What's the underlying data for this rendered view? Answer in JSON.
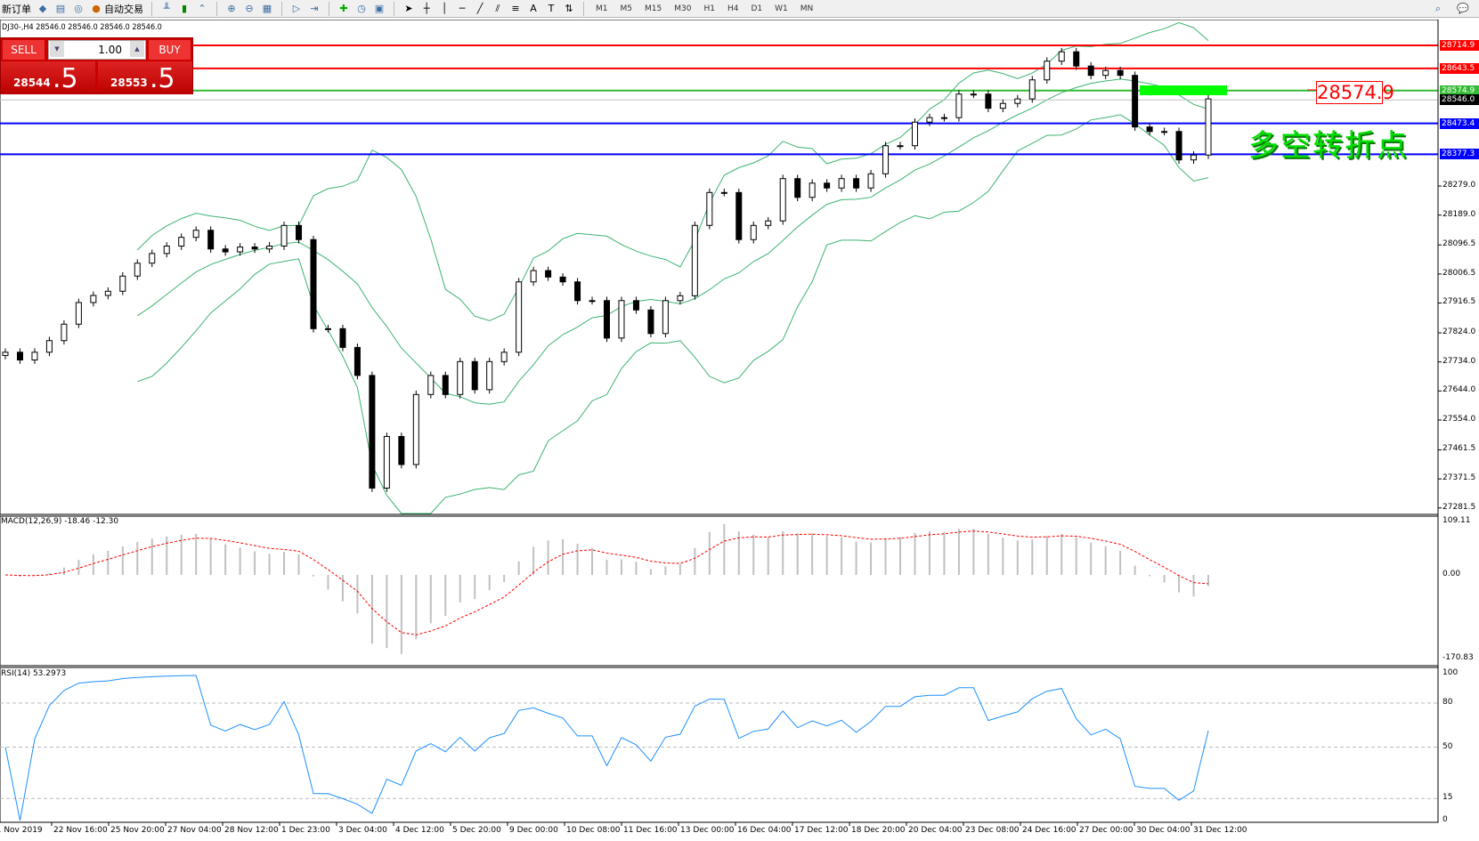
{
  "toolbar": {
    "new_order": "新订单",
    "auto_trading": "自动交易",
    "timeframes": [
      "M1",
      "M5",
      "M15",
      "M30",
      "H1",
      "H4",
      "D1",
      "W1",
      "MN"
    ]
  },
  "chart": {
    "info": "DJ30-,H4  28546.0 28546.0 28546.0 28546.0",
    "trade_panel": {
      "sell": "SELL",
      "buy": "BUY",
      "lot": "1.00",
      "sell_small": "28544",
      "sell_big": ".5",
      "buy_small": "28553",
      "buy_big": ".5"
    },
    "price_ticks": [
      "28279.0",
      "28189.0",
      "28096.5",
      "28006.5",
      "27916.5",
      "27824.0",
      "27734.0",
      "27644.0",
      "27554.0",
      "27461.5",
      "27371.5",
      "27281.5"
    ],
    "hlines": [
      {
        "price": 28714.9,
        "label": "28714.9",
        "color": "#ff0000"
      },
      {
        "price": 28643.5,
        "label": "28643.5",
        "color": "#ff0000"
      },
      {
        "price": 28574.9,
        "label": "28574.9",
        "color": "#33bb33"
      },
      {
        "price": 28546.0,
        "label": "28546.0",
        "color": "#c0c0c0",
        "label_bg": "#000000"
      },
      {
        "price": 28473.4,
        "label": "28473.4",
        "color": "#0000ff"
      },
      {
        "price": 28377.3,
        "label": "28377.3",
        "color": "#0000ff"
      }
    ],
    "price_label_box": "28574.9",
    "annotation": "多空转折点",
    "closes": [
      27764,
      27740,
      27764,
      27800,
      27851,
      27918,
      27940,
      27953,
      28000,
      28040,
      28070,
      28093,
      28120,
      28142,
      28084,
      28075,
      28090,
      28084,
      28093,
      28157,
      28113,
      27837,
      27837,
      27779,
      27692,
      27343,
      27503,
      27416,
      27633,
      27692,
      27633,
      27735,
      27648,
      27735,
      27764,
      27982,
      28017,
      27997,
      27982,
      27924,
      27924,
      27808,
      27924,
      27895,
      27822,
      27924,
      27939,
      28157,
      28259,
      28259,
      28113,
      28157,
      28171,
      28302,
      28244,
      28288,
      28273,
      28302,
      28273,
      28317,
      28404,
      28404,
      28477,
      28491,
      28491,
      28564,
      28564,
      28520,
      28535,
      28549,
      28608,
      28666,
      28695,
      28651,
      28622,
      28637,
      28622,
      28462,
      28448,
      28448,
      28360,
      28375,
      28549
    ],
    "time_labels": [
      "21 Nov 2019",
      "22 Nov 16:00",
      "25 Nov 20:00",
      "27 Nov 04:00",
      "28 Nov 12:00",
      "1 Dec 23:00",
      "3 Dec 04:00",
      "4 Dec 12:00",
      "5 Dec 20:00",
      "9 Dec 00:00",
      "10 Dec 08:00",
      "11 Dec 16:00",
      "13 Dec 00:00",
      "16 Dec 04:00",
      "17 Dec 12:00",
      "18 Dec 20:00",
      "20 Dec 04:00",
      "23 Dec 08:00",
      "24 Dec 16:00",
      "27 Dec 00:00",
      "30 Dec 04:00",
      "31 Dec 12:00"
    ],
    "macd": {
      "label": "MACD(12,26,9) -18.46 -12.30",
      "ticks": [
        "109.11",
        "0.00",
        "-170.83"
      ]
    },
    "rsi": {
      "label": "RSI(14) 53.2973",
      "ticks": [
        "100",
        "80",
        "50",
        "15",
        "0"
      ]
    },
    "colors": {
      "bands": "#3cb371",
      "signal": "#ff0000",
      "rsi": "#1e90ff",
      "histogram": "#c0c0c0"
    }
  }
}
